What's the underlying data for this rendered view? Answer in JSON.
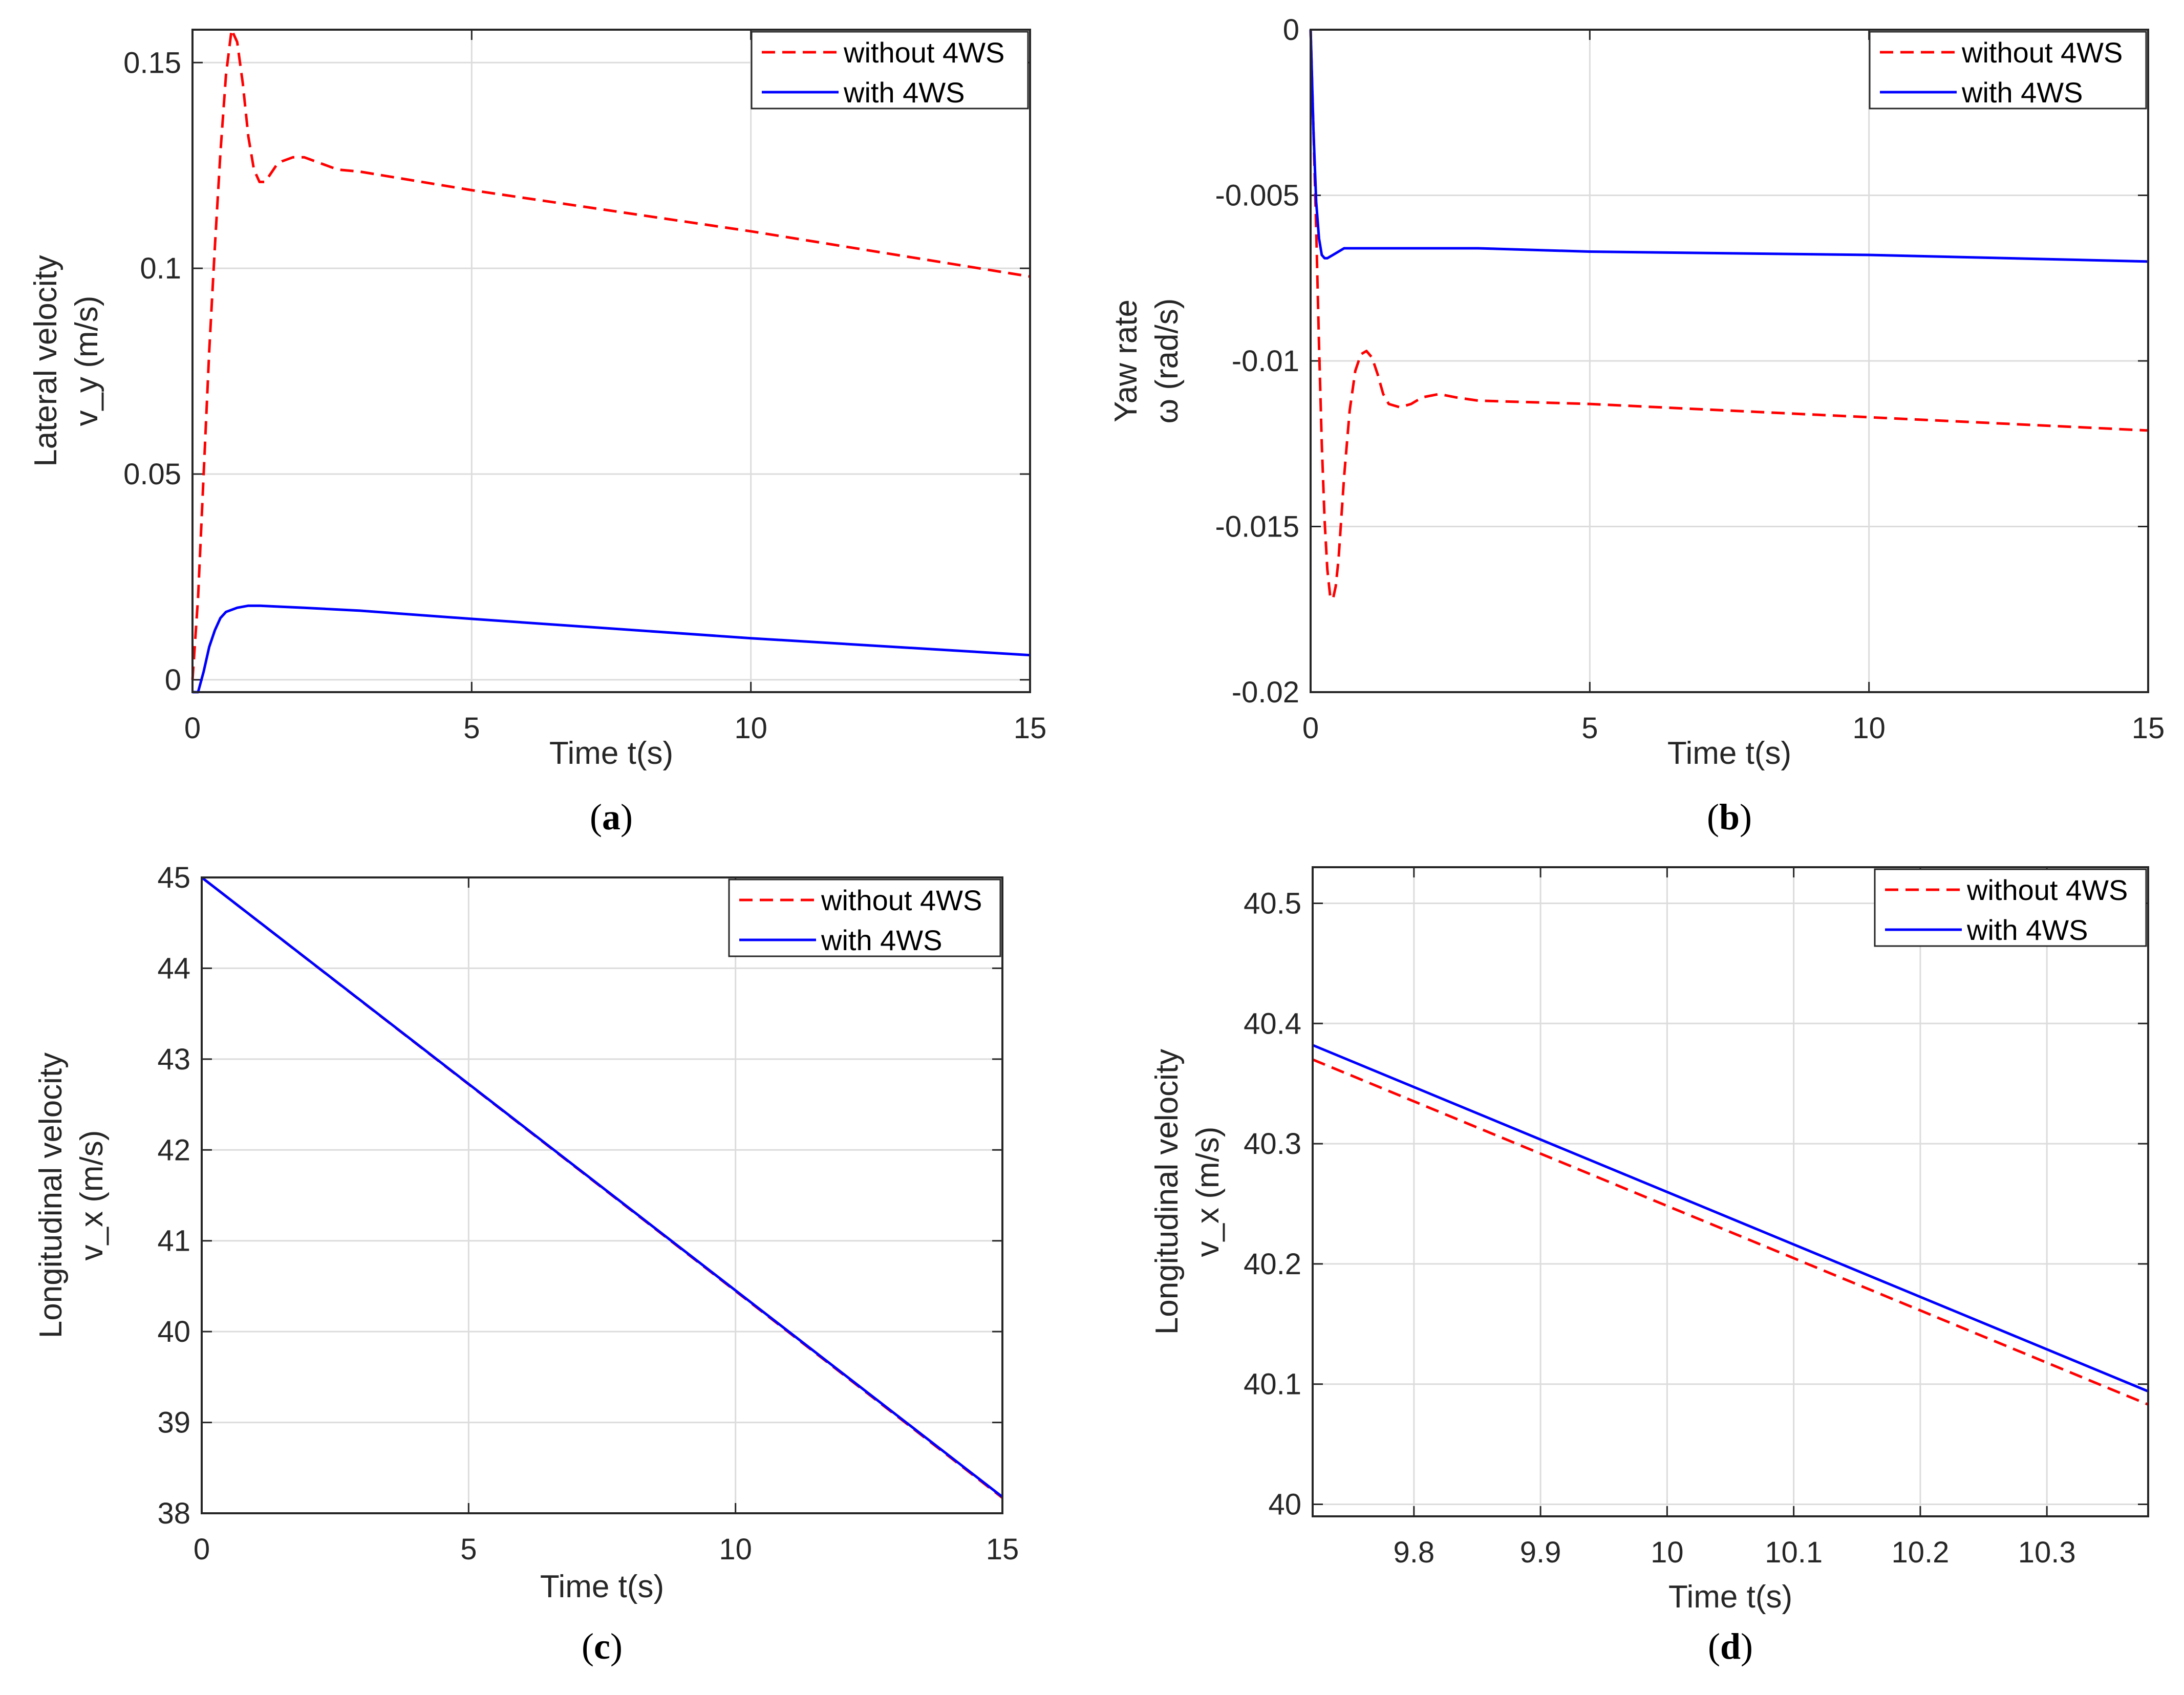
{
  "chart_data": [
    {
      "panel": "(a)",
      "caption_letter": "a",
      "type": "line",
      "xlabel": "Time t(s)",
      "ylabel_lines": [
        "Lateral velocity",
        "v_y (m/s)"
      ],
      "xlim": [
        0,
        15
      ],
      "ylim": [
        -0.003,
        0.158
      ],
      "xticks": [
        0,
        5,
        10,
        15
      ],
      "xtick_labels": [
        "0",
        "5",
        "10",
        "15"
      ],
      "yticks": [
        0,
        0.05,
        0.1,
        0.15
      ],
      "ytick_labels": [
        "0",
        "0.05",
        "0.1",
        "0.15"
      ],
      "grid": true,
      "legend_position": "top-right",
      "series": [
        {
          "name": "without 4WS",
          "color": "#ff0000",
          "dash": "dashed",
          "x": [
            0,
            0.1,
            0.2,
            0.3,
            0.4,
            0.5,
            0.6,
            0.7,
            0.8,
            0.9,
            1.0,
            1.1,
            1.2,
            1.3,
            1.4,
            1.5,
            1.6,
            1.8,
            2.0,
            2.2,
            2.4,
            2.6,
            3,
            5,
            10,
            15
          ],
          "y": [
            0,
            0.02,
            0.05,
            0.08,
            0.105,
            0.128,
            0.147,
            0.158,
            0.155,
            0.145,
            0.132,
            0.124,
            0.121,
            0.121,
            0.123,
            0.125,
            0.126,
            0.127,
            0.127,
            0.126,
            0.125,
            0.124,
            0.1235,
            0.119,
            0.109,
            0.098
          ]
        },
        {
          "name": "with 4WS",
          "color": "#0000ff",
          "dash": "solid",
          "x": [
            0,
            0.1,
            0.2,
            0.3,
            0.4,
            0.5,
            0.6,
            0.8,
            1.0,
            1.2,
            1.5,
            2,
            3,
            5,
            10,
            15
          ],
          "y": [
            -0.003,
            -0.003,
            0.002,
            0.008,
            0.012,
            0.015,
            0.0165,
            0.0175,
            0.018,
            0.018,
            0.0178,
            0.0175,
            0.0168,
            0.0148,
            0.0101,
            0.006
          ]
        }
      ]
    },
    {
      "panel": "(b)",
      "caption_letter": "b",
      "type": "line",
      "xlabel": "Time t(s)",
      "ylabel_lines": [
        "Yaw rate",
        "ω (rad/s)"
      ],
      "xlim": [
        0,
        15
      ],
      "ylim": [
        -0.02,
        0
      ],
      "xticks": [
        0,
        5,
        10,
        15
      ],
      "xtick_labels": [
        "0",
        "5",
        "10",
        "15"
      ],
      "yticks": [
        0,
        -0.005,
        -0.01,
        -0.015,
        -0.02
      ],
      "ytick_labels": [
        "0",
        "-0.005",
        "-0.01",
        "-0.015",
        "-0.02"
      ],
      "grid": true,
      "legend_position": "top-right",
      "series": [
        {
          "name": "without 4WS",
          "color": "#ff0000",
          "dash": "dashed",
          "x": [
            0,
            0.05,
            0.1,
            0.15,
            0.2,
            0.25,
            0.3,
            0.35,
            0.4,
            0.45,
            0.5,
            0.6,
            0.7,
            0.8,
            0.9,
            1.0,
            1.1,
            1.2,
            1.3,
            1.4,
            1.6,
            1.8,
            2.0,
            2.3,
            2.6,
            3,
            5,
            10,
            15
          ],
          "y": [
            0,
            -0.003,
            -0.006,
            -0.0095,
            -0.0125,
            -0.0148,
            -0.0163,
            -0.0171,
            -0.0172,
            -0.0168,
            -0.016,
            -0.0135,
            -0.0115,
            -0.0103,
            -0.0098,
            -0.0097,
            -0.0099,
            -0.0104,
            -0.011,
            -0.0113,
            -0.0114,
            -0.0113,
            -0.0111,
            -0.011,
            -0.0111,
            -0.0112,
            -0.0113,
            -0.0117,
            -0.0121
          ]
        },
        {
          "name": "with 4WS",
          "color": "#0000ff",
          "dash": "solid",
          "x": [
            0,
            0.05,
            0.1,
            0.15,
            0.2,
            0.25,
            0.3,
            0.4,
            0.5,
            0.6,
            0.8,
            1.0,
            1.5,
            2,
            3,
            5,
            10,
            15
          ],
          "y": [
            0,
            -0.003,
            -0.0052,
            -0.0063,
            -0.0068,
            -0.0069,
            -0.0069,
            -0.0068,
            -0.0067,
            -0.0066,
            -0.0066,
            -0.0066,
            -0.0066,
            -0.0066,
            -0.0066,
            -0.0067,
            -0.0068,
            -0.007
          ]
        }
      ]
    },
    {
      "panel": "(c)",
      "caption_letter": "c",
      "type": "line",
      "xlabel": "Time t(s)",
      "ylabel_lines": [
        "Longitudinal velocity",
        "v_x (m/s)"
      ],
      "xlim": [
        0,
        15
      ],
      "ylim": [
        38,
        45
      ],
      "xticks": [
        0,
        5,
        10,
        15
      ],
      "xtick_labels": [
        "0",
        "5",
        "10",
        "15"
      ],
      "yticks": [
        38,
        39,
        40,
        41,
        42,
        43,
        44,
        45
      ],
      "ytick_labels": [
        "38",
        "39",
        "40",
        "41",
        "42",
        "43",
        "44",
        "45"
      ],
      "grid": true,
      "legend_position": "top-right",
      "series": [
        {
          "name": "without 4WS",
          "color": "#ff0000",
          "dash": "dashed",
          "x": [
            0,
            15
          ],
          "y": [
            45,
            38.17
          ]
        },
        {
          "name": "with 4WS",
          "color": "#0000ff",
          "dash": "solid",
          "x": [
            0,
            15
          ],
          "y": [
            45,
            38.18
          ]
        }
      ]
    },
    {
      "panel": "(d)",
      "caption_letter": "d",
      "type": "line",
      "xlabel": "Time t(s)",
      "ylabel_lines": [
        "Longitudinal velocity",
        "v_x (m/s)"
      ],
      "xlim": [
        9.72,
        10.38
      ],
      "ylim": [
        39.99,
        40.53
      ],
      "xticks": [
        9.8,
        9.9,
        10,
        10.1,
        10.2,
        10.3
      ],
      "xtick_labels": [
        "9.8",
        "9.9",
        "10",
        "10.1",
        "10.2",
        "10.3"
      ],
      "yticks": [
        40,
        40.1,
        40.2,
        40.3,
        40.4,
        40.5
      ],
      "ytick_labels": [
        "40",
        "40.1",
        "40.2",
        "40.3",
        "40.4",
        "40.5"
      ],
      "grid": true,
      "legend_position": "top-right",
      "series": [
        {
          "name": "without 4WS",
          "color": "#ff0000",
          "dash": "dashed",
          "x": [
            9.72,
            10.38
          ],
          "y": [
            40.37,
            40.083
          ]
        },
        {
          "name": "with 4WS",
          "color": "#0000ff",
          "dash": "solid",
          "x": [
            9.72,
            10.38
          ],
          "y": [
            40.382,
            40.094
          ]
        }
      ]
    }
  ]
}
